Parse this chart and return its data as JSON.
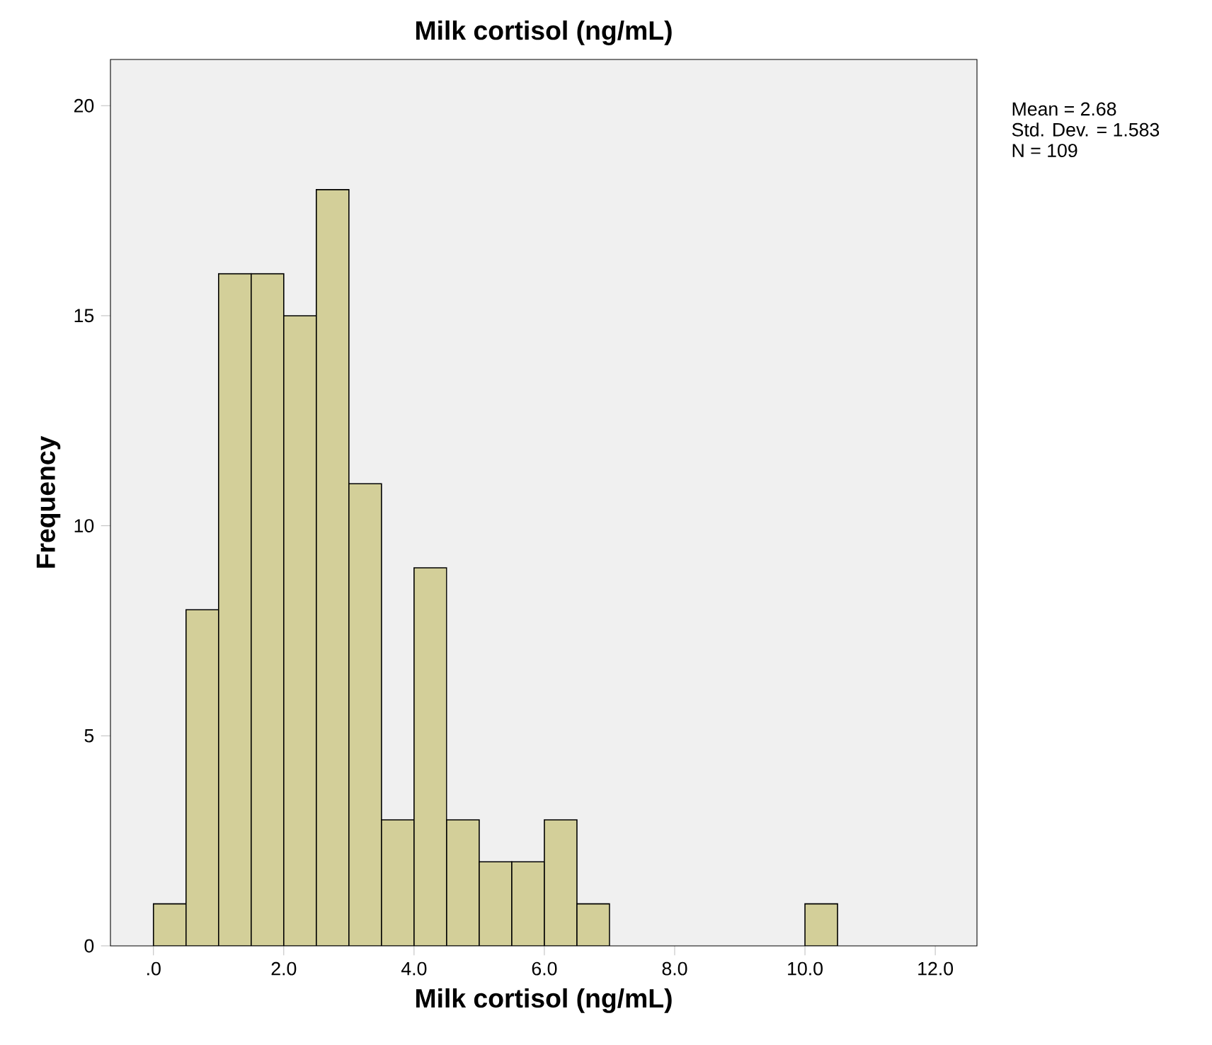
{
  "chart_data": {
    "type": "histogram",
    "title": "Milk cortisol (ng/mL)",
    "xlabel": "Milk cortisol (ng/mL)",
    "ylabel": "Frequency",
    "bins": [
      0,
      0.5,
      1,
      1.5,
      2,
      2.5,
      3,
      3.5,
      4,
      4.5,
      5,
      5.5,
      6,
      6.5,
      7,
      7.5,
      8,
      8.5,
      9,
      9.5,
      10,
      10.5
    ],
    "values": [
      1,
      8,
      16,
      16,
      15,
      18,
      11,
      3,
      9,
      3,
      2,
      2,
      3,
      1,
      0,
      0,
      0,
      0,
      0,
      0,
      1
    ],
    "color": "#d3cf99",
    "xlim": [
      -0.66,
      12.64
    ],
    "ylim": [
      0,
      21.1
    ],
    "xticks": [
      {
        "value": 0,
        "label": ".0"
      },
      {
        "value": 2,
        "label": "2.0"
      },
      {
        "value": 4,
        "label": "4.0"
      },
      {
        "value": 6,
        "label": "6.0"
      },
      {
        "value": 8,
        "label": "8.0"
      },
      {
        "value": 10,
        "label": "10.0"
      },
      {
        "value": 12,
        "label": "12.0"
      }
    ],
    "yticks": [
      0,
      5,
      10,
      15,
      20
    ],
    "annotations": [
      "Mean = 2.68",
      "Std. Dev. = 1.583",
      "N = 109"
    ]
  }
}
